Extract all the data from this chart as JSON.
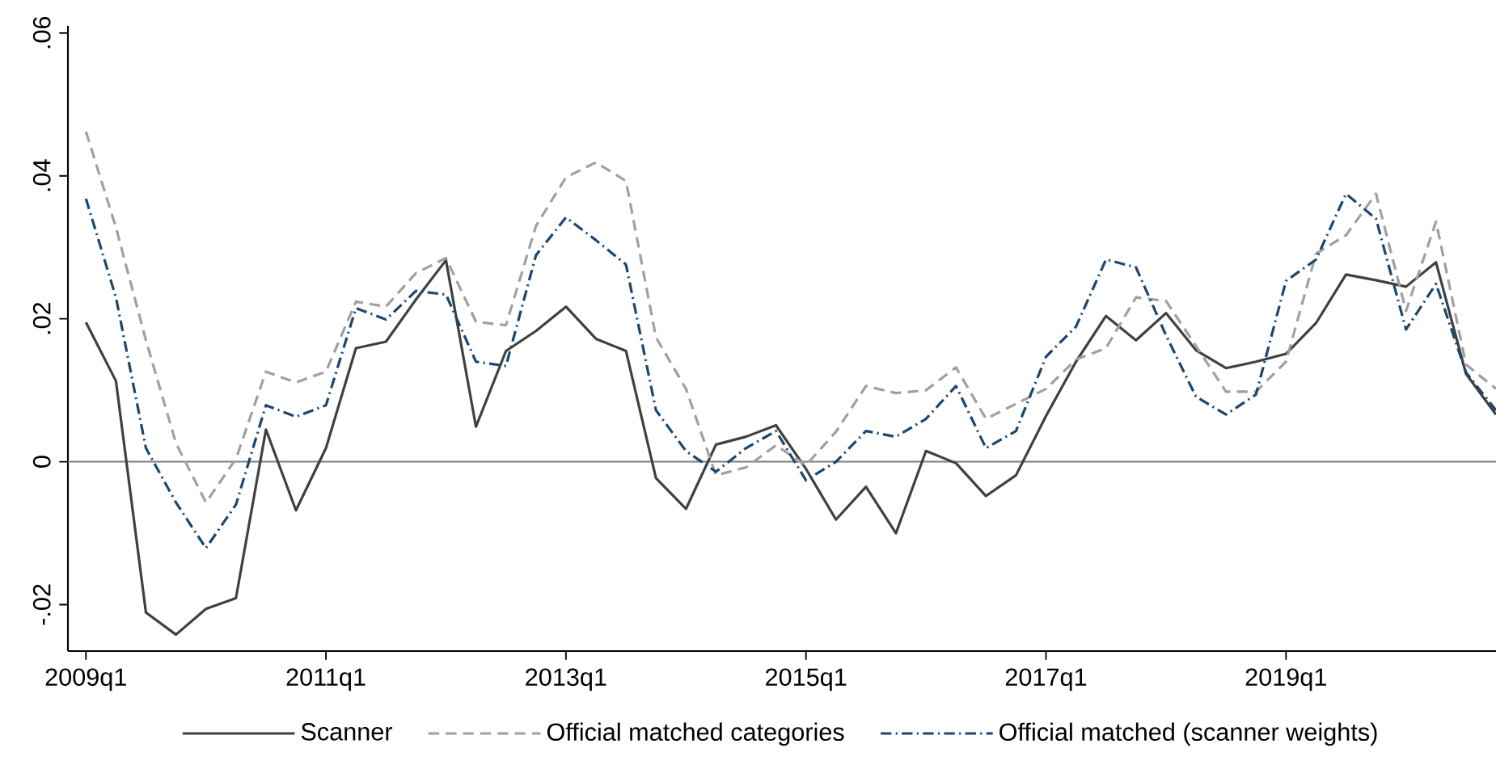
{
  "chart_data": {
    "type": "line",
    "categories": [
      "2009q1",
      null,
      null,
      null,
      null,
      null,
      null,
      null,
      "2011q1",
      null,
      null,
      null,
      null,
      null,
      null,
      null,
      "2013q1",
      null,
      null,
      null,
      null,
      null,
      null,
      null,
      "2015q1",
      null,
      null,
      null,
      null,
      null,
      null,
      null,
      "2017q1",
      null,
      null,
      null,
      null,
      null,
      null,
      null,
      "2019q1",
      null,
      null,
      null,
      null,
      null,
      null,
      null
    ],
    "series": [
      {
        "name": "Scanner",
        "color": "#404040",
        "line_style": "solid",
        "values": [
          0.0195,
          0.0113,
          -0.0211,
          -0.0242,
          -0.0206,
          -0.0191,
          0.0045,
          -0.0068,
          0.0019,
          0.0159,
          0.0168,
          0.0227,
          0.0282,
          0.0049,
          0.0155,
          0.0183,
          0.0217,
          0.0172,
          0.0155,
          -0.0023,
          -0.0066,
          0.0024,
          0.0035,
          0.0051,
          -0.001,
          -0.0081,
          -0.0035,
          -0.01,
          0.0015,
          -0.0002,
          -0.0048,
          -0.0019,
          0.0064,
          0.014,
          0.0204,
          0.017,
          0.0208,
          0.0156,
          0.0131,
          0.014,
          0.0151,
          0.0194,
          0.0262,
          0.0254,
          0.0245,
          0.0279,
          0.0123,
          0.0066
        ]
      },
      {
        "name": "Official matched categories",
        "color": "#a0a0a0",
        "line_style": "dashed",
        "values": [
          0.0462,
          0.0328,
          0.017,
          0.0026,
          -0.0057,
          0.0004,
          0.0126,
          0.0111,
          0.0126,
          0.0224,
          0.0217,
          0.0264,
          0.0285,
          0.0196,
          0.0191,
          0.033,
          0.0398,
          0.0419,
          0.0393,
          0.0174,
          0.0102,
          -0.0019,
          -0.0008,
          0.0023,
          -0.0005,
          0.0042,
          0.0106,
          0.0096,
          0.01,
          0.0132,
          0.006,
          0.0081,
          0.0102,
          0.0143,
          0.0159,
          0.023,
          0.0225,
          0.0162,
          0.0098,
          0.0098,
          0.014,
          0.0291,
          0.0317,
          0.0375,
          0.0211,
          0.0336,
          0.0136,
          0.0102
        ]
      },
      {
        "name": "Official matched (scanner weights)",
        "color": "#1a476f",
        "line_style": "dashdot",
        "values": [
          0.0368,
          0.023,
          0.0019,
          -0.0057,
          -0.0121,
          -0.006,
          0.0079,
          0.0063,
          0.0079,
          0.0215,
          0.0199,
          0.0239,
          0.0234,
          0.014,
          0.0134,
          0.0289,
          0.0342,
          0.031,
          0.0276,
          0.0072,
          0.0015,
          -0.0014,
          0.0019,
          0.0043,
          -0.0026,
          0,
          0.0043,
          0.0035,
          0.006,
          0.0106,
          0.0019,
          0.0043,
          0.0147,
          0.0189,
          0.0283,
          0.0272,
          0.0177,
          0.0091,
          0.0066,
          0.0094,
          0.0253,
          0.0283,
          0.0375,
          0.034,
          0.0185,
          0.0249,
          0.0125,
          0.0072
        ]
      }
    ],
    "ylim": [
      -0.0265,
      0.061
    ],
    "yticks": [
      {
        "value": -0.02,
        "label": "-.02"
      },
      0,
      {
        "value": 0.02,
        "label": ".02"
      },
      {
        "value": 0.04,
        "label": ".04"
      },
      {
        "value": 0.06,
        "label": ".06"
      }
    ],
    "ref_lines": [
      {
        "axis": "y",
        "value": 0,
        "color": "#808080"
      }
    ],
    "grid": false,
    "legend": "bottom"
  }
}
